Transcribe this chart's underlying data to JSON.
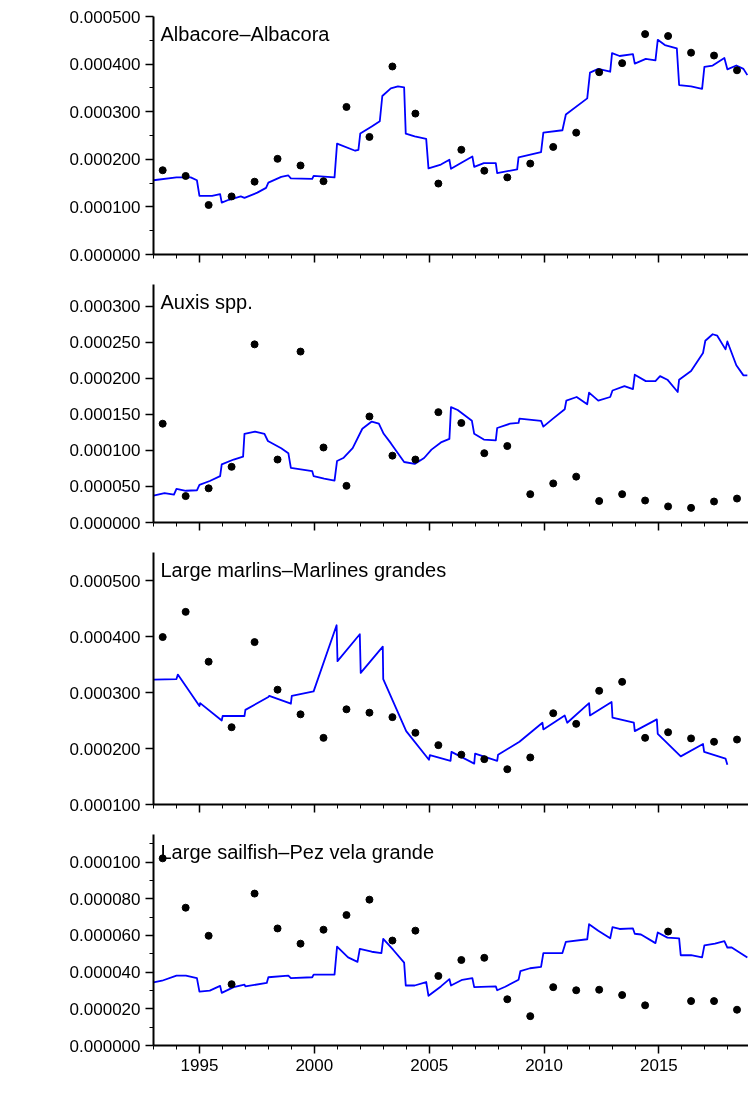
{
  "chart_data": [
    {
      "type": "line",
      "title": "Albacore–Albacora",
      "xlim": [
        1993,
        2018.9
      ],
      "ylim": [
        0,
        0.0005
      ],
      "tick_labels": "y",
      "grid": false,
      "line_style": "solid",
      "yticks": [
        {
          "value": 0,
          "label": "0.000000"
        },
        {
          "value": 5e-05,
          "label": null
        },
        {
          "value": 0.0001,
          "label": "0.000100"
        },
        {
          "value": 0.00015,
          "label": null
        },
        {
          "value": 0.0002,
          "label": "0.000200"
        },
        {
          "value": 0.00025,
          "label": null
        },
        {
          "value": 0.0003,
          "label": "0.000300"
        },
        {
          "value": 0.00035,
          "label": null
        },
        {
          "value": 0.0004,
          "label": "0.000400"
        },
        {
          "value": 0.00045,
          "label": null
        },
        {
          "value": 0.0005,
          "label": "0.000500"
        }
      ],
      "series": [
        {
          "marker": "none",
          "color": "#0000ff",
          "x": [
            1993.0,
            1994.0,
            1994.62,
            1994.89,
            1995.0,
            1995.55,
            1995.9,
            1995.97,
            1996.28,
            1996.8,
            1996.96,
            1997.52,
            1997.9,
            1998.0,
            1998.56,
            1998.87,
            1998.98,
            1999.91,
            1999.97,
            2000.88,
            2000.99,
            2001.78,
            2001.92,
            2002.0,
            2002.5,
            2002.85,
            2002.96,
            2003.33,
            2003.64,
            2003.91,
            2003.98,
            2004.37,
            2004.87,
            2004.97,
            2005.51,
            2005.88,
            2005.95,
            2006.44,
            2006.88,
            2006.96,
            2007.38,
            2007.9,
            2007.96,
            2008.83,
            2008.89,
            2009.87,
            2009.97,
            2010.8,
            2010.95,
            2011.88,
            2012.0,
            2012.36,
            2012.88,
            2012.96,
            2013.29,
            2013.87,
            2013.95,
            2014.43,
            2014.85,
            2014.95,
            2015.26,
            2015.78,
            2015.88,
            2016.4,
            2016.88,
            2016.98,
            2017.34,
            2017.85,
            2017.98,
            2018.37,
            2018.68,
            2018.85
          ],
          "values": [
            0.000156,
            0.000162,
            0.000162,
            0.000156,
            0.000123,
            0.000123,
            0.000127,
            0.000109,
            0.000115,
            0.000122,
            0.000119,
            0.00013,
            0.00014,
            0.000151,
            0.000163,
            0.000166,
            0.00016,
            0.000159,
            0.000165,
            0.000162,
            0.000233,
            0.000218,
            0.00022,
            0.000254,
            0.000269,
            0.00028,
            0.000333,
            0.000349,
            0.000353,
            0.000351,
            0.000254,
            0.000248,
            0.000243,
            0.000181,
            0.000189,
            0.000199,
            0.00018,
            0.000194,
            0.000206,
            0.000184,
            0.000192,
            0.000192,
            0.000171,
            0.000179,
            0.000204,
            0.000215,
            0.000256,
            0.000261,
            0.000294,
            0.000328,
            0.000382,
            0.00039,
            0.000384,
            0.000423,
            0.000417,
            0.000421,
            0.000401,
            0.000411,
            0.000408,
            0.000451,
            0.00044,
            0.000433,
            0.000356,
            0.000353,
            0.000348,
            0.000394,
            0.000397,
            0.000413,
            0.000389,
            0.000397,
            0.00039,
            0.000377
          ]
        },
        {
          "type": "scatter",
          "marker": "circle",
          "color": "#000000",
          "x": [
            1993.4,
            1994.4,
            1995.4,
            1996.4,
            1997.4,
            1998.4,
            1999.4,
            2000.4,
            2001.4,
            2002.4,
            2003.4,
            2004.4,
            2005.4,
            2006.4,
            2007.4,
            2008.4,
            2009.4,
            2010.4,
            2011.4,
            2012.4,
            2013.4,
            2014.4,
            2015.4,
            2016.4,
            2017.4,
            2018.4
          ],
          "values": [
            0.000177,
            0.000165,
            0.000104,
            0.000122,
            0.000153,
            0.000201,
            0.000187,
            0.000154,
            0.00031,
            0.000247,
            0.000395,
            0.000296,
            0.000149,
            0.00022,
            0.000176,
            0.000162,
            0.000191,
            0.000226,
            0.000256,
            0.000383,
            0.000402,
            0.000463,
            0.000459,
            0.000424,
            0.000418,
            0.000387
          ]
        }
      ]
    },
    {
      "type": "line",
      "title": "Auxis spp.",
      "xlim": [
        1993,
        2018.9
      ],
      "ylim": [
        0,
        0.00033
      ],
      "tick_labels": "y",
      "grid": false,
      "line_style": "solid",
      "yticks": [
        {
          "value": 0,
          "label": "0.000000"
        },
        {
          "value": 5e-05,
          "label": "0.000050"
        },
        {
          "value": 0.0001,
          "label": "0.000100"
        },
        {
          "value": 0.00015,
          "label": "0.000150"
        },
        {
          "value": 0.0002,
          "label": "0.000200"
        },
        {
          "value": 0.00025,
          "label": "0.000250"
        },
        {
          "value": 0.0003,
          "label": "0.000300"
        }
      ],
      "series": [
        {
          "marker": "none",
          "color": "#0000ff",
          "x": [
            1993.0,
            1993.48,
            1993.89,
            1994.0,
            1994.41,
            1994.89,
            1995.0,
            1995.45,
            1995.9,
            1995.97,
            1996.49,
            1996.9,
            1996.96,
            1997.42,
            1997.83,
            1997.98,
            1998.56,
            1998.87,
            1998.98,
            1999.91,
            1999.97,
            2000.43,
            2000.88,
            2000.99,
            2001.26,
            2001.67,
            2002.09,
            2002.5,
            2002.81,
            2003.02,
            2003.33,
            2003.91,
            2004.37,
            2004.78,
            2005.1,
            2005.51,
            2005.88,
            2005.95,
            2006.24,
            2006.86,
            2006.96,
            2007.38,
            2007.9,
            2007.96,
            2008.52,
            2008.89,
            2008.93,
            2009.87,
            2009.97,
            2010.39,
            2010.9,
            2010.97,
            2011.42,
            2011.88,
            2011.96,
            2012.36,
            2012.88,
            2012.98,
            2013.5,
            2013.87,
            2013.95,
            2014.43,
            2014.85,
            2015.05,
            2015.37,
            2015.82,
            2015.88,
            2016.4,
            2016.92,
            2017.02,
            2017.34,
            2017.54,
            2017.9,
            2017.98,
            2018.37,
            2018.68,
            2018.85
          ],
          "values": [
            3.72e-05,
            4.06e-05,
            3.86e-05,
            4.67e-05,
            4.4e-05,
            4.47e-05,
            5.21e-05,
            5.75e-05,
            6.43e-05,
            8.06e-05,
            8.73e-05,
            9.14e-05,
            0.000123,
            0.000126,
            0.000123,
            0.000113,
            0.000103,
            9.61e-05,
            7.58e-05,
            7.11e-05,
            6.43e-05,
            6.09e-05,
            5.82e-05,
            8.53e-05,
            8.94e-05,
            0.000103,
            0.00013,
            0.00014,
            0.000137,
            0.000123,
            0.00011,
            8.39e-05,
            8.12e-05,
            8.94e-05,
            0.000101,
            0.000111,
            0.000116,
            0.00016,
            0.000156,
            0.000141,
            0.000123,
            0.000115,
            0.000114,
            0.000131,
            0.000137,
            0.000138,
            0.000144,
            0.000141,
            0.000133,
            0.000144,
            0.000157,
            0.000169,
            0.000174,
            0.000164,
            0.00018,
            0.000169,
            0.000174,
            0.000183,
            0.000189,
            0.000185,
            0.000205,
            0.000196,
            0.000196,
            0.000203,
            0.000198,
            0.000181,
            0.000198,
            0.00021,
            0.000235,
            0.000252,
            0.000261,
            0.000259,
            0.00024,
            0.000251,
            0.000218,
            0.000204,
            0.000204
          ]
        },
        {
          "type": "scatter",
          "marker": "circle",
          "color": "#000000",
          "x": [
            1993.4,
            1994.4,
            1995.4,
            1996.4,
            1997.4,
            1998.4,
            1999.4,
            2000.4,
            2001.4,
            2002.4,
            2003.4,
            2004.4,
            2005.4,
            2006.4,
            2007.4,
            2008.4,
            2009.4,
            2010.4,
            2011.4,
            2012.4,
            2013.4,
            2014.4,
            2015.4,
            2016.4,
            2017.4,
            2018.4
          ],
          "values": [
            0.000137,
            3.66e-05,
            4.74e-05,
            7.72e-05,
            0.000247,
            8.73e-05,
            0.000237,
            0.000104,
            5.08e-05,
            0.000147,
            9.27e-05,
            8.73e-05,
            0.000153,
            0.000138,
            9.61e-05,
            0.000106,
            3.93e-05,
            5.42e-05,
            6.36e-05,
            2.98e-05,
            3.93e-05,
            3.05e-05,
            2.23e-05,
            2.03e-05,
            2.91e-05,
            3.32e-05
          ]
        }
      ]
    },
    {
      "type": "line",
      "title": "Large marlins–Marlines grandes",
      "xlim": [
        1993,
        2018.9
      ],
      "ylim": [
        0.0001,
        0.00055
      ],
      "tick_labels": "y",
      "grid": false,
      "line_style": "solid",
      "yticks": [
        {
          "value": 0.0001,
          "label": "0.000100"
        },
        {
          "value": 0.0002,
          "label": "0.000200"
        },
        {
          "value": 0.0003,
          "label": "0.000300"
        },
        {
          "value": 0.0004,
          "label": "0.000400"
        },
        {
          "value": 0.0005,
          "label": "0.000500"
        }
      ],
      "series": [
        {
          "marker": "none",
          "color": "#0000ff",
          "x": [
            1993.0,
            1994.0,
            1994.06,
            1995.0,
            1995.03,
            1995.97,
            1996.01,
            1996.96,
            1997.0,
            1998.0,
            1998.04,
            1998.98,
            1999.02,
            1999.97,
            2000.97,
            2001.01,
            2001.98,
            2002.02,
            2002.98,
            2003.0,
            2004.0,
            2004.99,
            2005.03,
            2005.93,
            2005.97,
            2006.96,
            2007.0,
            2007.96,
            2008.0,
            2008.93,
            2009.93,
            2009.97,
            2010.9,
            2011.01,
            2011.96,
            2012.0,
            2012.94,
            2012.98,
            2013.91,
            2013.95,
            2014.91,
            2014.95,
            2015.95,
            2016.92,
            2016.97,
            2017.9,
            2017.98
          ],
          "values": [
            0.000323,
            0.000324,
            0.000332,
            0.000276,
            0.000281,
            0.00025,
            0.000258,
            0.000258,
            0.000269,
            0.000292,
            0.000294,
            0.00028,
            0.000294,
            0.000302,
            0.00042,
            0.000356,
            0.000404,
            0.000335,
            0.000382,
            0.000324,
            0.000231,
            0.00018,
            0.000188,
            0.000178,
            0.000194,
            0.000173,
            0.000191,
            0.000178,
            0.000189,
            0.000212,
            0.000246,
            0.000234,
            0.000259,
            0.000246,
            0.000281,
            0.000259,
            0.000283,
            0.000255,
            0.000246,
            0.000231,
            0.000252,
            0.000226,
            0.000186,
            0.000208,
            0.000194,
            0.000182,
            0.000171
          ]
        },
        {
          "type": "scatter",
          "marker": "circle",
          "color": "#000000",
          "x": [
            1993.4,
            1994.4,
            1995.4,
            1996.4,
            1997.4,
            1998.4,
            1999.4,
            2000.4,
            2001.4,
            2002.4,
            2003.4,
            2004.4,
            2005.4,
            2006.4,
            2007.4,
            2008.4,
            2009.4,
            2010.4,
            2011.4,
            2012.4,
            2013.4,
            2014.4,
            2015.4,
            2016.4,
            2017.4,
            2018.4
          ],
          "values": [
            0.000399,
            0.000444,
            0.000355,
            0.000238,
            0.00039,
            0.000305,
            0.000261,
            0.000219,
            0.00027,
            0.000264,
            0.000256,
            0.000228,
            0.000206,
            0.000189,
            0.000181,
            0.000163,
            0.000184,
            0.000263,
            0.000244,
            0.000303,
            0.000319,
            0.000219,
            0.000229,
            0.000218,
            0.000212,
            0.000216
          ]
        }
      ]
    },
    {
      "type": "line",
      "title": "Large sailfish–Pez vela grande",
      "xlim": [
        1993,
        2018.9
      ],
      "ylim": [
        0,
        0.000115
      ],
      "grid": false,
      "line_style": "solid",
      "xticks": [
        {
          "value": 1993,
          "label": null
        },
        {
          "value": 1994,
          "label": null
        },
        {
          "value": 1995,
          "label": "1995"
        },
        {
          "value": 1996,
          "label": null
        },
        {
          "value": 1997,
          "label": null
        },
        {
          "value": 1998,
          "label": null
        },
        {
          "value": 1999,
          "label": null
        },
        {
          "value": 2000,
          "label": "2000"
        },
        {
          "value": 2001,
          "label": null
        },
        {
          "value": 2002,
          "label": null
        },
        {
          "value": 2003,
          "label": null
        },
        {
          "value": 2004,
          "label": null
        },
        {
          "value": 2005,
          "label": "2005"
        },
        {
          "value": 2006,
          "label": null
        },
        {
          "value": 2007,
          "label": null
        },
        {
          "value": 2008,
          "label": null
        },
        {
          "value": 2009,
          "label": null
        },
        {
          "value": 2010,
          "label": "2010"
        },
        {
          "value": 2011,
          "label": null
        },
        {
          "value": 2012,
          "label": null
        },
        {
          "value": 2013,
          "label": null
        },
        {
          "value": 2014,
          "label": null
        },
        {
          "value": 2015,
          "label": "2015"
        },
        {
          "value": 2016,
          "label": null
        },
        {
          "value": 2017,
          "label": null
        },
        {
          "value": 2018,
          "label": null
        }
      ],
      "yticks": [
        {
          "value": 0,
          "label": "0.000000"
        },
        {
          "value": 1e-05,
          "label": null
        },
        {
          "value": 2e-05,
          "label": "0.000020"
        },
        {
          "value": 3e-05,
          "label": null
        },
        {
          "value": 4e-05,
          "label": "0.000040"
        },
        {
          "value": 5e-05,
          "label": null
        },
        {
          "value": 6e-05,
          "label": "0.000060"
        },
        {
          "value": 7e-05,
          "label": null
        },
        {
          "value": 8e-05,
          "label": "0.000080"
        },
        {
          "value": 9e-05,
          "label": null
        },
        {
          "value": 0.0001,
          "label": "0.000100"
        },
        {
          "value": 0.00011,
          "label": null
        }
      ],
      "series": [
        {
          "marker": "none",
          "color": "#0000ff",
          "x": [
            1993.0,
            1993.37,
            1994.0,
            1994.41,
            1994.89,
            1995.0,
            1995.45,
            1995.9,
            1995.97,
            1996.49,
            1996.96,
            1997.0,
            1997.93,
            1998.0,
            1998.87,
            1998.98,
            1999.91,
            1999.97,
            2000.88,
            2000.99,
            2001.47,
            2001.88,
            2001.98,
            2002.5,
            2002.92,
            2003.0,
            2003.43,
            2003.91,
            2003.98,
            2004.37,
            2004.87,
            2004.97,
            2005.51,
            2005.88,
            2005.95,
            2006.44,
            2006.88,
            2006.96,
            2007.9,
            2007.96,
            2008.31,
            2008.89,
            2008.97,
            2009.39,
            2009.87,
            2009.97,
            2010.8,
            2010.95,
            2011.88,
            2011.96,
            2012.36,
            2012.88,
            2012.98,
            2013.29,
            2013.87,
            2013.95,
            2014.22,
            2014.85,
            2014.95,
            2015.37,
            2015.88,
            2015.95,
            2016.4,
            2016.88,
            2016.98,
            2017.44,
            2017.85,
            2017.98,
            2018.17,
            2018.85
          ],
          "values": [
            3.44e-05,
            3.53e-05,
            3.81e-05,
            3.81e-05,
            3.67e-05,
            2.94e-05,
            2.99e-05,
            3.25e-05,
            2.87e-05,
            3.18e-05,
            3.32e-05,
            3.22e-05,
            3.41e-05,
            3.72e-05,
            3.81e-05,
            3.67e-05,
            3.72e-05,
            3.86e-05,
            3.86e-05,
            5.39e-05,
            4.8e-05,
            4.56e-05,
            5.27e-05,
            5.11e-05,
            5.04e-05,
            5.81e-05,
            5.22e-05,
            4.52e-05,
            3.27e-05,
            3.27e-05,
            3.46e-05,
            2.71e-05,
            3.22e-05,
            3.62e-05,
            3.27e-05,
            3.58e-05,
            3.67e-05,
            3.18e-05,
            3.22e-05,
            3.01e-05,
            3.2e-05,
            3.58e-05,
            4.05e-05,
            4.21e-05,
            4.28e-05,
            5.04e-05,
            5.04e-05,
            5.65e-05,
            5.79e-05,
            6.61e-05,
            6.26e-05,
            5.84e-05,
            6.45e-05,
            6.35e-05,
            6.38e-05,
            6.09e-05,
            6.05e-05,
            5.58e-05,
            6.16e-05,
            5.88e-05,
            5.84e-05,
            4.92e-05,
            4.92e-05,
            4.8e-05,
            5.46e-05,
            5.55e-05,
            5.69e-05,
            5.34e-05,
            5.34e-05,
            4.8e-05
          ]
        },
        {
          "type": "scatter",
          "marker": "circle",
          "color": "#000000",
          "x": [
            1993.4,
            1994.4,
            1995.4,
            1996.4,
            1997.4,
            1998.4,
            1999.4,
            2000.4,
            2001.4,
            2002.4,
            2003.4,
            2004.4,
            2005.4,
            2006.4,
            2007.4,
            2008.4,
            2009.4,
            2010.4,
            2011.4,
            2012.4,
            2013.4,
            2014.4,
            2015.4,
            2016.4,
            2017.4,
            2018.4
          ],
          "values": [
            0.000102,
            7.51e-05,
            5.98e-05,
            3.34e-05,
            8.28e-05,
            6.38e-05,
            5.55e-05,
            6.31e-05,
            7.11e-05,
            7.95e-05,
            5.72e-05,
            6.26e-05,
            3.79e-05,
            4.66e-05,
            4.78e-05,
            2.52e-05,
            1.6e-05,
            3.18e-05,
            3.01e-05,
            3.04e-05,
            2.75e-05,
            2.19e-05,
            6.21e-05,
            2.42e-05,
            2.42e-05,
            1.95e-05
          ]
        }
      ]
    }
  ]
}
